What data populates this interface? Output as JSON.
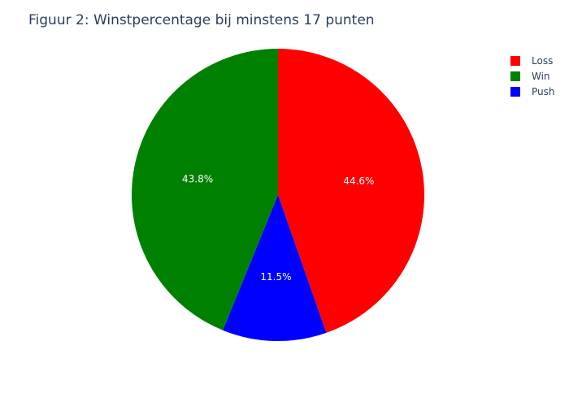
{
  "chart_data": {
    "type": "pie",
    "title": "Figuur 2: Winstpercentage bij minstens 17 punten",
    "slices": [
      {
        "label": "Loss",
        "value": 44.6,
        "text": "44.6%",
        "color": "#ff0000"
      },
      {
        "label": "Push",
        "value": 11.5,
        "text": "11.5%",
        "color": "#0000ff"
      },
      {
        "label": "Win",
        "value": 43.8,
        "text": "43.8%",
        "color": "#008000"
      }
    ],
    "legend": {
      "placement": "top-right",
      "order": [
        "Loss",
        "Win",
        "Push"
      ]
    }
  }
}
